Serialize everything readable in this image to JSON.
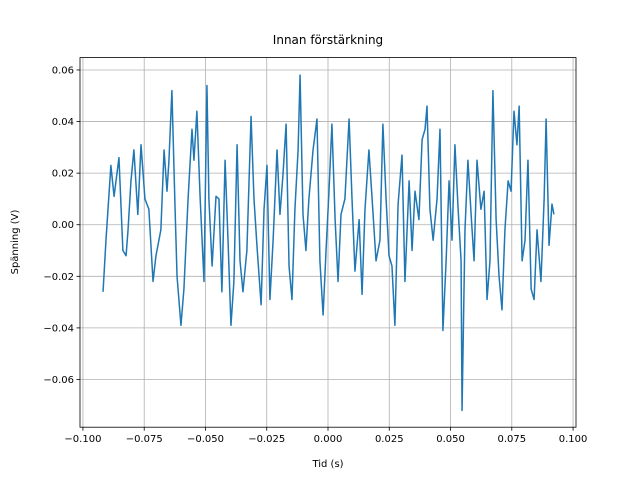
{
  "chart_data": {
    "type": "line",
    "title": "Innan förstärkning",
    "xlabel": "Tid (s)",
    "ylabel": "Spänning (V)",
    "color": "#1f77b4",
    "grid": true,
    "xlim": [
      -0.1012,
      0.1012
    ],
    "ylim": [
      -0.0785,
      0.0648
    ],
    "xticks": [
      {
        "value": -0.1,
        "label": "−0.100"
      },
      {
        "value": -0.075,
        "label": "−0.075"
      },
      {
        "value": -0.05,
        "label": "−0.050"
      },
      {
        "value": -0.025,
        "label": "−0.025"
      },
      {
        "value": 0,
        "label": "0.000"
      },
      0.025,
      {
        "value": 0.05,
        "label": "0.050"
      },
      0.075,
      {
        "value": 0.1,
        "label": "0.100"
      }
    ],
    "yticks": [
      {
        "value": -0.06,
        "label": "−0.06"
      },
      {
        "value": -0.04,
        "label": "−0.04"
      },
      {
        "value": -0.02,
        "label": "−0.02"
      },
      {
        "value": 0,
        "label": "0.00"
      },
      0.02,
      0.04,
      0.06
    ],
    "x": [
      -0.0918,
      -0.0906,
      -0.0886,
      -0.0873,
      -0.0853,
      -0.0837,
      -0.0824,
      -0.0816,
      -0.0804,
      -0.0792,
      -0.0776,
      -0.0763,
      -0.0747,
      -0.0731,
      -0.0714,
      -0.0702,
      -0.0682,
      -0.0669,
      -0.0657,
      -0.0649,
      -0.0637,
      -0.0624,
      -0.0616,
      -0.06,
      -0.0588,
      -0.0571,
      -0.0555,
      -0.0547,
      -0.0535,
      -0.0522,
      -0.0506,
      -0.0494,
      -0.0486,
      -0.0473,
      -0.0457,
      -0.0445,
      -0.0433,
      -0.042,
      -0.0408,
      -0.0396,
      -0.0384,
      -0.0371,
      -0.0359,
      -0.0347,
      -0.0331,
      -0.0314,
      -0.0302,
      -0.029,
      -0.0273,
      -0.0261,
      -0.0249,
      -0.0237,
      -0.0224,
      -0.0208,
      -0.0196,
      -0.0184,
      -0.0171,
      -0.0159,
      -0.0147,
      -0.0135,
      -0.0122,
      -0.0114,
      -0.0102,
      -0.009,
      -0.0078,
      -0.0061,
      -0.0045,
      -0.0033,
      -0.002,
      -0.0008,
      0.0004,
      0.0016,
      0.0029,
      0.0041,
      0.0053,
      0.0069,
      0.0086,
      0.0098,
      0.011,
      0.0127,
      0.0139,
      0.0151,
      0.0167,
      0.018,
      0.0196,
      0.0212,
      0.0224,
      0.0237,
      0.0249,
      0.0261,
      0.0273,
      0.0286,
      0.0302,
      0.0314,
      0.0331,
      0.0343,
      0.0355,
      0.0371,
      0.0384,
      0.0396,
      0.0404,
      0.0416,
      0.0429,
      0.0445,
      0.0457,
      0.0469,
      0.0482,
      0.0494,
      0.0506,
      0.0518,
      0.0531,
      0.0543,
      0.0547,
      0.0559,
      0.0571,
      0.0584,
      0.0596,
      0.0608,
      0.0624,
      0.0637,
      0.0649,
      0.0661,
      0.0673,
      0.0686,
      0.0698,
      0.071,
      0.0722,
      0.0735,
      0.0747,
      0.0759,
      0.0771,
      0.078,
      0.0792,
      0.0804,
      0.0816,
      0.0829,
      0.0841,
      0.0853,
      0.0869,
      0.0882,
      0.089,
      0.0902,
      0.0914,
      0.0922
    ],
    "values": [
      -0.026,
      -0.006,
      0.023,
      0.011,
      0.026,
      -0.01,
      -0.012,
      -0.002,
      0.017,
      0.029,
      0.004,
      0.031,
      0.01,
      0.006,
      -0.022,
      -0.012,
      -0.002,
      0.029,
      0.013,
      0.025,
      0.052,
      0.006,
      -0.02,
      -0.039,
      -0.025,
      0.01,
      0.037,
      0.025,
      0.044,
      0.011,
      -0.022,
      0.054,
      0.01,
      -0.016,
      0.011,
      0.01,
      -0.026,
      0.025,
      -0.006,
      -0.039,
      -0.022,
      0.031,
      -0.014,
      -0.026,
      -0.01,
      0.042,
      0.01,
      -0.008,
      -0.031,
      0.006,
      0.023,
      -0.029,
      -0.006,
      0.029,
      0.004,
      0.019,
      0.039,
      -0.016,
      -0.029,
      0.006,
      0.029,
      0.058,
      0.004,
      -0.01,
      0.01,
      0.029,
      0.041,
      -0.014,
      -0.035,
      -0.01,
      0.013,
      0.039,
      0.002,
      -0.022,
      0.004,
      0.01,
      0.041,
      0.01,
      -0.018,
      0.002,
      -0.027,
      0.006,
      0.029,
      0.01,
      -0.014,
      -0.006,
      0.039,
      0.01,
      -0.012,
      -0.016,
      -0.039,
      0.008,
      0.027,
      -0.022,
      0.017,
      -0.01,
      0.013,
      0.002,
      0.033,
      0.037,
      0.046,
      0.006,
      -0.006,
      0.01,
      0.037,
      -0.041,
      -0.014,
      0.017,
      -0.006,
      0.031,
      0.006,
      -0.014,
      -0.072,
      -0.002,
      0.025,
      0.004,
      -0.014,
      0.025,
      0.006,
      0.013,
      -0.029,
      -0.014,
      0.052,
      0.002,
      -0.02,
      -0.033,
      -0.002,
      0.017,
      0.013,
      0.044,
      0.031,
      0.046,
      -0.014,
      -0.006,
      0.025,
      -0.025,
      -0.029,
      -0.002,
      -0.022,
      0.01,
      0.041,
      -0.008,
      0.008,
      0.004
    ]
  }
}
